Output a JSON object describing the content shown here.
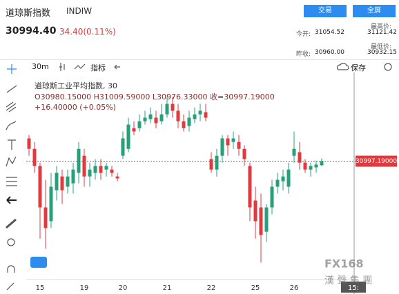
{
  "header": {
    "name": "道琼斯指数",
    "code": "INDIW",
    "trade_button": "交易",
    "fullscreen_button": "全屏",
    "price": "30994.40",
    "change": "34.40(0.11%)",
    "open_label": "今开:",
    "open": "31054.52",
    "high_label": "最高价:",
    "high": "31121.42",
    "prev_close_label": "昨收:",
    "prev_close": "30960.00",
    "low_label": "最低价:",
    "low": "30932.15"
  },
  "toolbar": {
    "interval": "30m",
    "indicators": "指标",
    "save": "保存"
  },
  "watermark": {
    "brand": "FX168",
    "group": "漢 聲 集 團"
  },
  "chart_data": {
    "type": "candlestick",
    "legend_title": "道琼斯工业平均指数, 30",
    "legend_ohlc": "O30980.15000  H31009.59000  L30976.33000  收=30997.19000",
    "legend_change": "+16.40000 (+0.05%)",
    "cursor_time": "15:",
    "up_color": "#26a07a",
    "down_color": "#e0393e",
    "ylim": [
      30500,
      31370
    ],
    "last_price": {
      "value": 30997.19,
      "label": "30997.19000"
    },
    "categories": [
      null,
      null,
      "15",
      null,
      null,
      null,
      null,
      null,
      null,
      null,
      "19",
      null,
      null,
      null,
      null,
      null,
      null,
      "20",
      null,
      null,
      null,
      null,
      null,
      null,
      null,
      "21",
      null,
      null,
      null,
      null,
      null,
      null,
      null,
      "22",
      null,
      null,
      null,
      null,
      null,
      null,
      null,
      "25",
      null,
      null,
      null,
      null,
      null,
      null,
      "26",
      null,
      null,
      null,
      null,
      null
    ],
    "ohlc": [
      [
        31093,
        31107,
        31020,
        31049
      ],
      [
        31049,
        31078,
        30948,
        30977
      ],
      [
        30977,
        30991,
        30672,
        30803
      ],
      [
        30803,
        30919,
        30629,
        30716
      ],
      [
        30745,
        30948,
        30716,
        30890
      ],
      [
        30875,
        30977,
        30832,
        30948
      ],
      [
        30933,
        30962,
        30817,
        30875
      ],
      [
        30890,
        30962,
        30861,
        30933
      ],
      [
        30904,
        30991,
        30861,
        30962
      ],
      [
        30948,
        31078,
        30904,
        31049
      ],
      [
        31020,
        31049,
        30890,
        30933
      ],
      [
        30933,
        30991,
        30890,
        30962
      ],
      [
        30948,
        31006,
        30919,
        30977
      ],
      [
        30977,
        31006,
        30919,
        30948
      ],
      [
        30962,
        30991,
        30933,
        30977
      ],
      [
        30962,
        30977,
        30933,
        30948
      ],
      [
        30933,
        30948,
        30913,
        30925
      ],
      [
        31020,
        31122,
        31006,
        31093
      ],
      [
        31049,
        31180,
        31035,
        31151
      ],
      [
        31136,
        31165,
        31107,
        31122
      ],
      [
        31136,
        31194,
        31122,
        31165
      ],
      [
        31165,
        31209,
        31151,
        31180
      ],
      [
        31174,
        31223,
        31157,
        31194
      ],
      [
        31180,
        31209,
        31136,
        31157
      ],
      [
        31165,
        31238,
        31151,
        31194
      ],
      [
        31194,
        31267,
        31180,
        31238
      ],
      [
        31238,
        31267,
        31180,
        31209
      ],
      [
        31209,
        31238,
        31136,
        31165
      ],
      [
        31165,
        31194,
        31122,
        31136
      ],
      [
        31145,
        31209,
        31122,
        31180
      ],
      [
        31174,
        31223,
        31157,
        31194
      ],
      [
        31194,
        31238,
        31165,
        31209
      ],
      [
        31203,
        31238,
        31165,
        31180
      ],
      [
        31006,
        31035,
        30948,
        30962
      ],
      [
        30962,
        31049,
        30933,
        31020
      ],
      [
        31020,
        31107,
        30991,
        31093
      ],
      [
        31093,
        31107,
        31020,
        31064
      ],
      [
        31078,
        31122,
        31049,
        31093
      ],
      [
        31078,
        31107,
        31020,
        31049
      ],
      [
        31049,
        31064,
        30977,
        31006
      ],
      [
        30977,
        30991,
        30745,
        30803
      ],
      [
        30832,
        30890,
        30672,
        30745
      ],
      [
        30803,
        30861,
        30571,
        30687
      ],
      [
        30701,
        30817,
        30658,
        30803
      ],
      [
        30803,
        30919,
        30774,
        30890
      ],
      [
        30890,
        30948,
        30861,
        30919
      ],
      [
        30913,
        30962,
        30875,
        30933
      ],
      [
        30890,
        30991,
        30861,
        30962
      ],
      [
        31020,
        31122,
        30991,
        31049
      ],
      [
        31035,
        31078,
        30962,
        30991
      ],
      [
        30991,
        31006,
        30948,
        30962
      ],
      [
        30962,
        30991,
        30933,
        30977
      ],
      [
        30971,
        31000,
        30948,
        30983
      ],
      [
        30980.15,
        31009.59,
        30976.33,
        30997.19
      ]
    ]
  }
}
